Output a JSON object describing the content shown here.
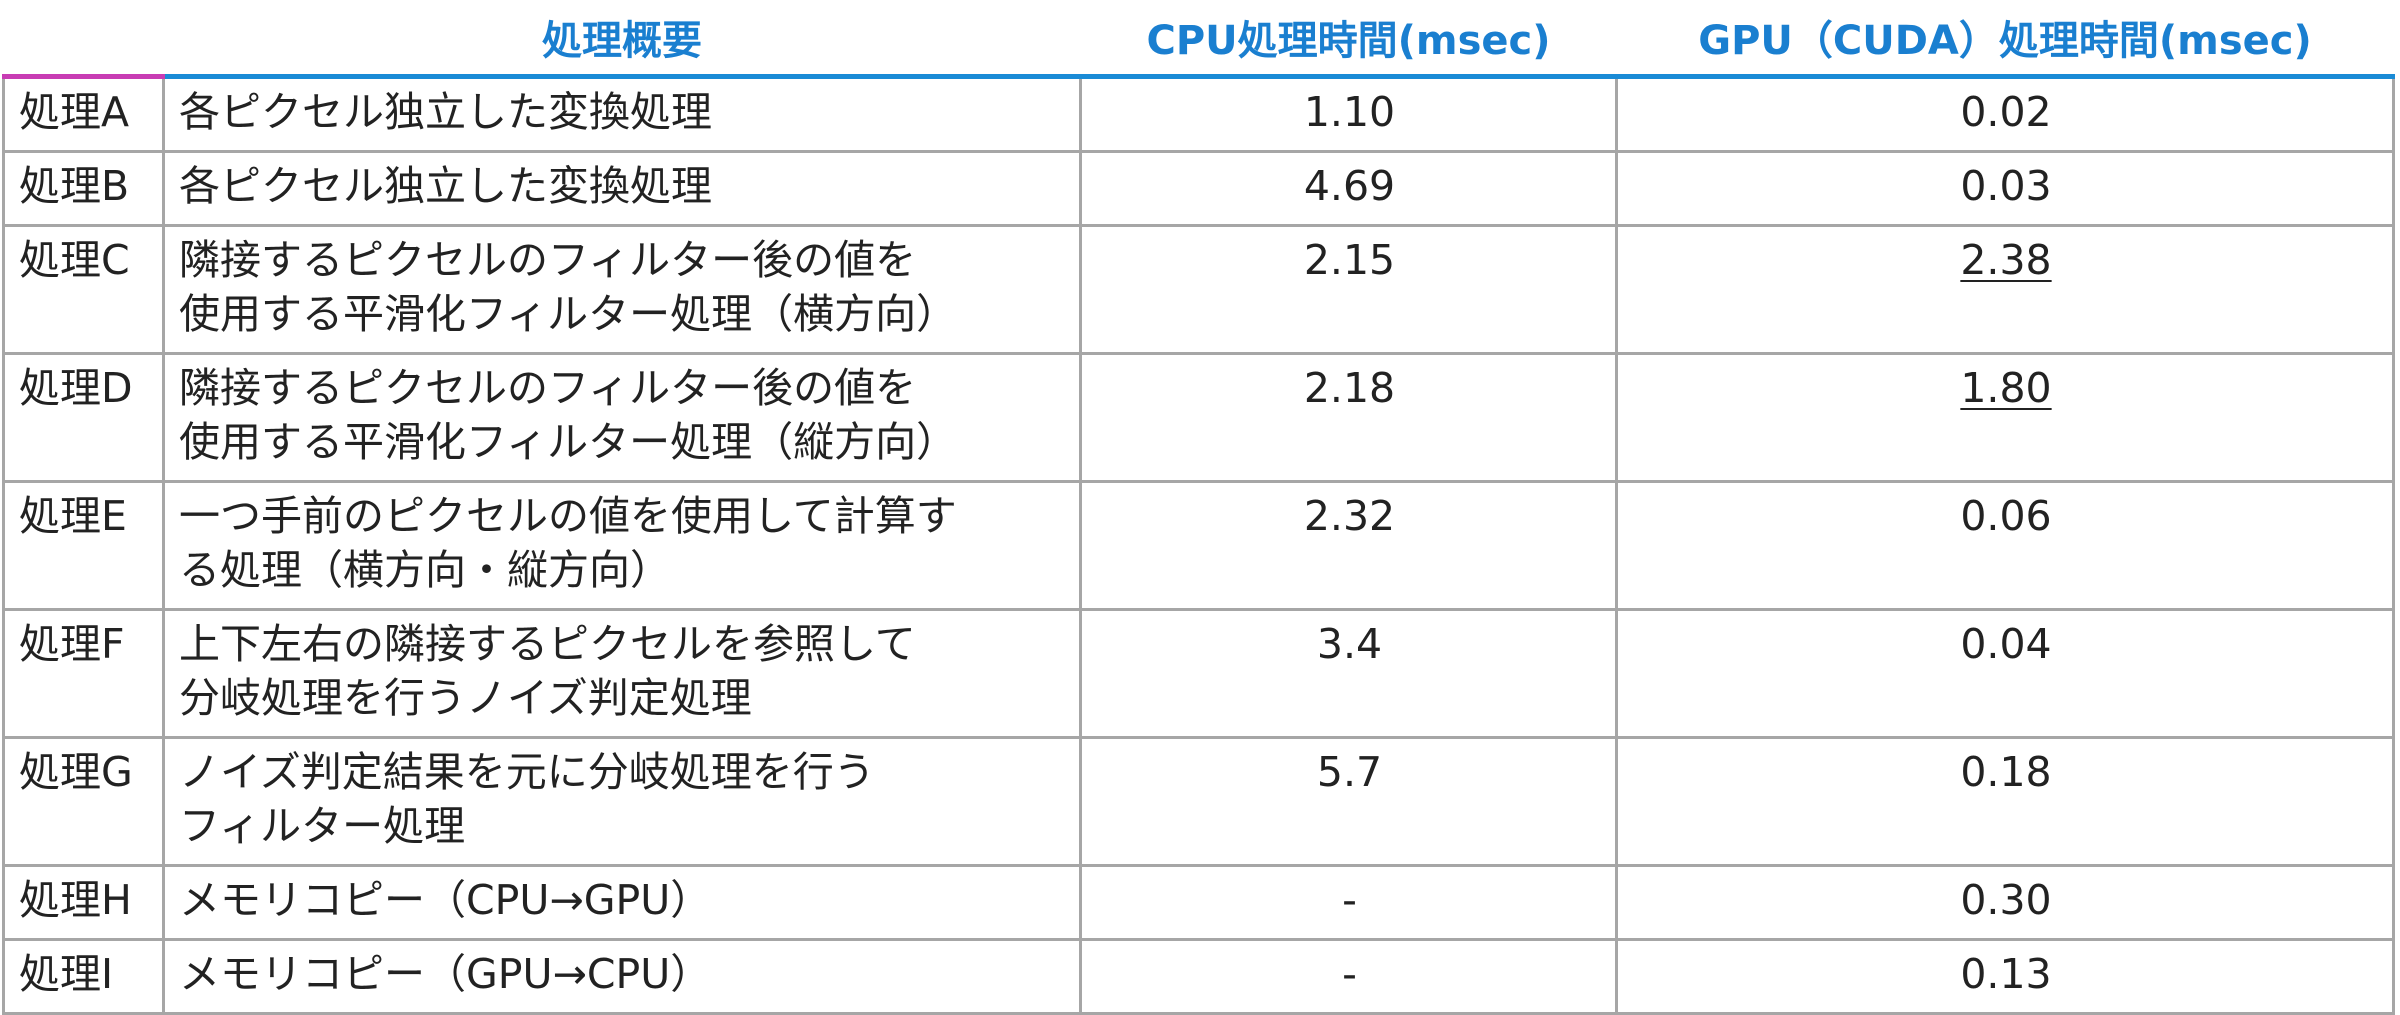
{
  "table": {
    "headers": [
      "処理概要",
      "CPU処理時間(msec)",
      "GPU（CUDA）処理時間(msec)"
    ],
    "rows": [
      {
        "name": "処理A",
        "description": [
          "各ピクセル独立した変換処理"
        ],
        "cpu": "1.10",
        "gpu": "0.02",
        "gpu_underlined": false
      },
      {
        "name": "処理B",
        "description": [
          "各ピクセル独立した変換処理"
        ],
        "cpu": "4.69",
        "gpu": "0.03",
        "gpu_underlined": false
      },
      {
        "name": "処理C",
        "description": [
          "隣接するピクセルのフィルター後の値を",
          "使用する平滑化フィルター処理（横方向）"
        ],
        "cpu": "2.15",
        "gpu": "2.38",
        "gpu_underlined": true
      },
      {
        "name": "処理D",
        "description": [
          "隣接するピクセルのフィルター後の値を",
          "使用する平滑化フィルター処理（縦方向）"
        ],
        "cpu": "2.18",
        "gpu": "1.80",
        "gpu_underlined": true
      },
      {
        "name": "処理E",
        "description": [
          "一つ手前のピクセルの値を使用して計算す",
          "る処理（横方向・縦方向）"
        ],
        "cpu": "2.32",
        "gpu": "0.06",
        "gpu_underlined": false
      },
      {
        "name": "処理F",
        "description": [
          "上下左右の隣接するピクセルを参照して",
          "分岐処理を行うノイズ判定処理"
        ],
        "cpu": "3.4",
        "gpu": "0.04",
        "gpu_underlined": false
      },
      {
        "name": "処理G",
        "description": [
          "ノイズ判定結果を元に分岐処理を行う",
          "フィルター処理"
        ],
        "cpu": "5.7",
        "gpu": "0.18",
        "gpu_underlined": false
      },
      {
        "name": "処理H",
        "description": [
          "メモリコピー（CPU→GPU）"
        ],
        "cpu": "-",
        "gpu": "0.30",
        "gpu_underlined": false
      },
      {
        "name": "処理I",
        "description": [
          "メモリコピー（GPU→CPU）"
        ],
        "cpu": "-",
        "gpu": "0.13",
        "gpu_underlined": false
      }
    ]
  }
}
